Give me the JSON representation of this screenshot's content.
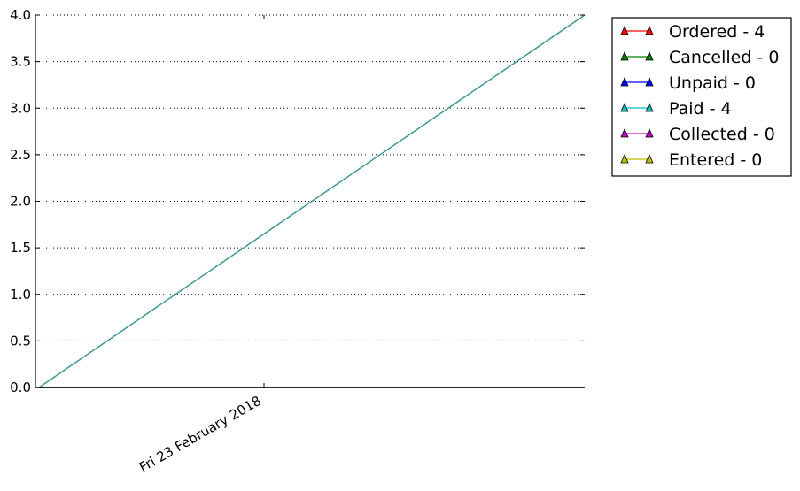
{
  "chart_data": {
    "type": "line",
    "title": "",
    "xlabel": "",
    "ylabel": "",
    "x_tick_labels": [
      "Fri 23 February 2018"
    ],
    "y_ticks": [
      0.0,
      0.5,
      1.0,
      1.5,
      2.0,
      2.5,
      3.0,
      3.5,
      4.0
    ],
    "y_tick_labels": [
      "0.0",
      "0.5",
      "1.0",
      "1.5",
      "2.0",
      "2.5",
      "3.0",
      "3.5",
      "4.0"
    ],
    "ylim": [
      0,
      4
    ],
    "grid": "horizontal dotted",
    "legend_position": "outside top-right",
    "series": [
      {
        "name": "Ordered - 4",
        "color": "#ff0000",
        "y_start": 0,
        "y_end": 4
      },
      {
        "name": "Cancelled - 0",
        "color": "#008000",
        "y_start": 0,
        "y_end": 0
      },
      {
        "name": "Unpaid - 0",
        "color": "#0000ff",
        "y_start": 0,
        "y_end": 0
      },
      {
        "name": "Paid - 4",
        "color": "#00bfbf",
        "y_start": 0,
        "y_end": 4
      },
      {
        "name": "Collected - 0",
        "color": "#bf00bf",
        "y_start": 0,
        "y_end": 0
      },
      {
        "name": "Entered - 0",
        "color": "#bfbf00",
        "y_start": 0,
        "y_end": 0
      }
    ]
  }
}
